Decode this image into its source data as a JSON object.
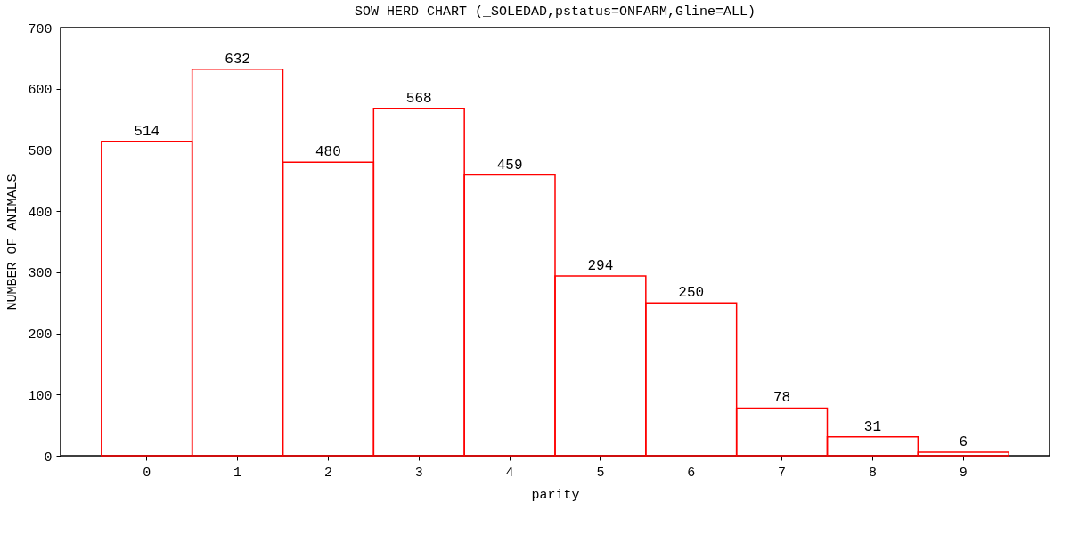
{
  "chart_data": {
    "type": "bar",
    "title": "SOW HERD CHART (_SOLEDAD,pstatus=ONFARM,Gline=ALL)",
    "xlabel": "parity",
    "ylabel": "NUMBER OF ANIMALS",
    "categories": [
      "0",
      "1",
      "2",
      "3",
      "4",
      "5",
      "6",
      "7",
      "8",
      "9"
    ],
    "values": [
      514,
      632,
      480,
      568,
      459,
      294,
      250,
      78,
      31,
      6
    ],
    "color": "#ff0000",
    "data_labels": true,
    "grid": false,
    "ylim": [
      0,
      700
    ],
    "yticks": [
      0,
      100,
      200,
      300,
      400,
      500,
      600,
      700
    ]
  }
}
